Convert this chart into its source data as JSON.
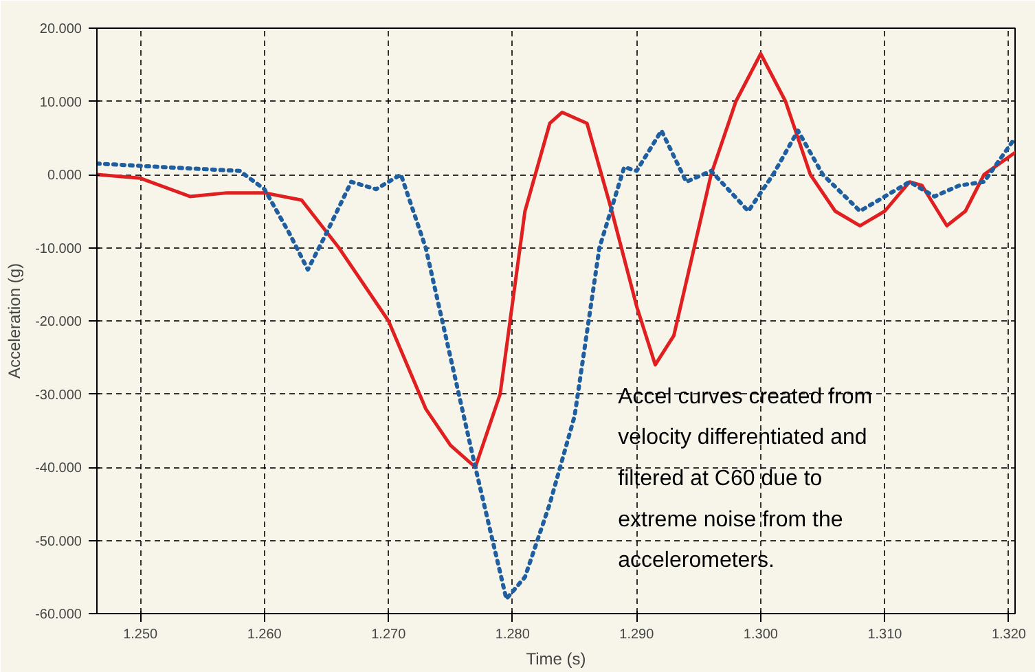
{
  "chart_data": {
    "type": "line",
    "xlabel": "Time (s)",
    "ylabel": "Acceleration (g)",
    "xlim": [
      1.2465,
      1.3205
    ],
    "ylim": [
      -60,
      20
    ],
    "xticks": [
      {
        "value": 1.25,
        "label": "1.250"
      },
      {
        "value": 1.26,
        "label": "1.260"
      },
      {
        "value": 1.27,
        "label": "1.270"
      },
      {
        "value": 1.28,
        "label": "1.280"
      },
      {
        "value": 1.29,
        "label": "1.290"
      },
      {
        "value": 1.3,
        "label": "1.300"
      },
      {
        "value": 1.31,
        "label": "1.310"
      },
      {
        "value": 1.32,
        "label": "1.320"
      }
    ],
    "yticks": [
      {
        "value": 20,
        "label": "20.000"
      },
      {
        "value": 10,
        "label": "10.000"
      },
      {
        "value": 0,
        "label": "0.000"
      },
      {
        "value": -10,
        "label": "-10.000"
      },
      {
        "value": -20,
        "label": "-20.000"
      },
      {
        "value": -30,
        "label": "-30.000"
      },
      {
        "value": -40,
        "label": "-40.000"
      },
      {
        "value": -50,
        "label": "-50.000"
      },
      {
        "value": -60,
        "label": "-60.000"
      }
    ],
    "grid": true,
    "annotations": [
      "Accel curves created from\nvelocity differentiated and\nfiltered at C60 due to\nextreme noise from the\naccelerometers."
    ],
    "series": [
      {
        "color": "#e02020",
        "line_style": "solid",
        "x": [
          1.2465,
          1.25,
          1.254,
          1.257,
          1.26,
          1.263,
          1.266,
          1.27,
          1.273,
          1.275,
          1.277,
          1.279,
          1.281,
          1.283,
          1.284,
          1.286,
          1.288,
          1.29,
          1.2915,
          1.293,
          1.296,
          1.298,
          1.3,
          1.302,
          1.304,
          1.306,
          1.308,
          1.31,
          1.312,
          1.313,
          1.315,
          1.3165,
          1.318,
          1.3205
        ],
        "values": [
          0,
          -0.5,
          -3,
          -2.5,
          -2.5,
          -3.5,
          -10,
          -20,
          -32,
          -37,
          -40,
          -30,
          -5,
          7,
          8.5,
          7,
          -5,
          -18,
          -26,
          -22,
          0,
          10,
          16.5,
          10,
          0,
          -5,
          -7,
          -5,
          -1,
          -1.5,
          -7,
          -5,
          0,
          3
        ]
      },
      {
        "color": "#1f5fa0",
        "line_style": "dotted",
        "x": [
          1.2465,
          1.252,
          1.258,
          1.26,
          1.262,
          1.2635,
          1.265,
          1.267,
          1.269,
          1.271,
          1.273,
          1.275,
          1.277,
          1.2795,
          1.281,
          1.283,
          1.285,
          1.287,
          1.289,
          1.29,
          1.292,
          1.294,
          1.296,
          1.299,
          1.301,
          1.303,
          1.305,
          1.308,
          1.31,
          1.312,
          1.314,
          1.316,
          1.318,
          1.3205
        ],
        "values": [
          1.5,
          1,
          0.5,
          -2,
          -8,
          -13,
          -8,
          -1,
          -2,
          0,
          -10,
          -25,
          -40,
          -58,
          -55,
          -45,
          -33,
          -10,
          1,
          0.5,
          6,
          -1,
          0.5,
          -5,
          0,
          6,
          0,
          -5,
          -3,
          -1,
          -3,
          -1.5,
          -1,
          5
        ]
      }
    ]
  }
}
